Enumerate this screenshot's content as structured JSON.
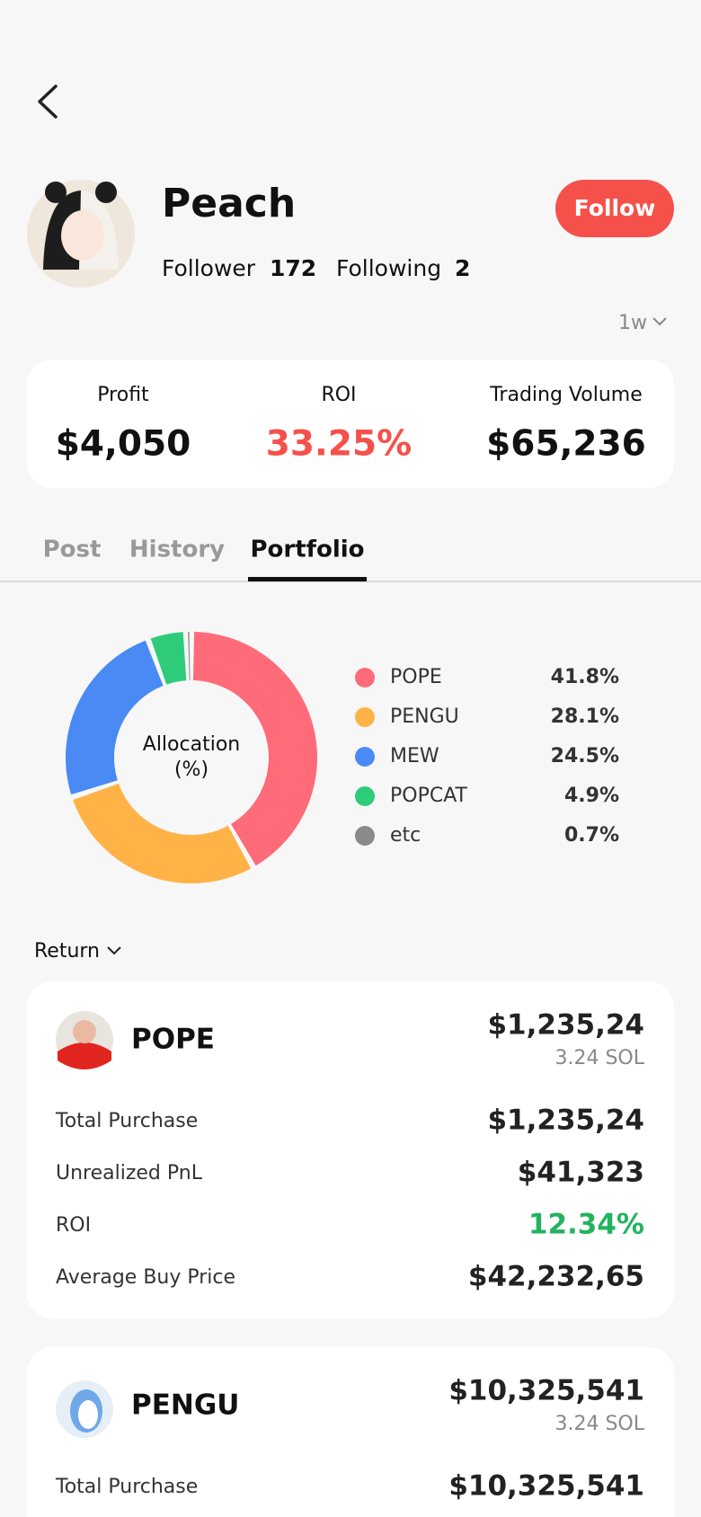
{
  "profile": {
    "name": "Peach",
    "follower_label": "Follower",
    "followers": 172,
    "following_label": "Following",
    "following": 2,
    "follow_button": "Follow"
  },
  "period": "1w",
  "stats": [
    {
      "label": "Profit",
      "value": "$4,050"
    },
    {
      "label": "ROI",
      "value": "33.25%"
    },
    {
      "label": "Trading Volume",
      "value": "$65,236"
    }
  ],
  "tabs": [
    "Post",
    "History",
    "Portfolio"
  ],
  "active_tab": 2,
  "chart_data": {
    "type": "donut",
    "center_label": [
      "Allocation",
      "(%)"
    ],
    "categories": [
      "POPE",
      "PENGU",
      "MEW",
      "POPCAT",
      "etc"
    ],
    "values": [
      41.8,
      28.1,
      24.5,
      4.9,
      0.7
    ],
    "value_labels": [
      "41.8%",
      "28.1%",
      "24.5%",
      "4.9%",
      "0.7%"
    ],
    "colors": [
      "#ff6b78",
      "#ffb347",
      "#4a8af4",
      "#2ecc7a",
      "#8a8a8a"
    ]
  },
  "sort_label": "Return",
  "holdings": [
    {
      "name": "POPE",
      "value": "$1,235,24",
      "amount": "3.24 SOL",
      "rows": [
        {
          "label": "Total Purchase",
          "value": "$1,235,24"
        },
        {
          "label": "Unrealized PnL",
          "value": "$41,323"
        },
        {
          "label": "ROI",
          "value": "12.34%"
        },
        {
          "label": "Average Buy Price",
          "value": "$42,232,65"
        }
      ]
    },
    {
      "name": "PENGU",
      "value": "$10,325,541",
      "amount": "3.24 SOL",
      "rows": [
        {
          "label": "Total Purchase",
          "value": "$10,325,541"
        }
      ]
    }
  ]
}
